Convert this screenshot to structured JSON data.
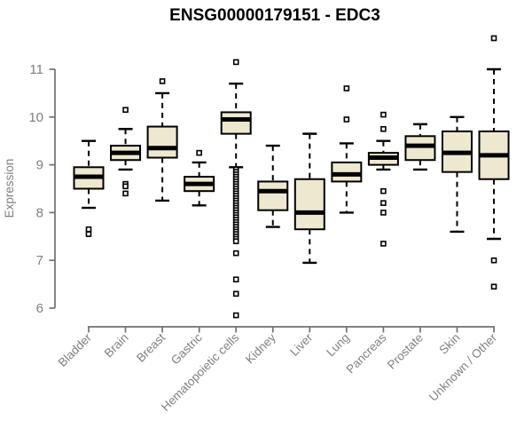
{
  "chart_data": {
    "type": "boxplot",
    "title": "ENSG00000179151 - EDC3",
    "xlabel": "",
    "ylabel": "Expression",
    "ylim": [
      6,
      11
    ],
    "yticks": [
      6,
      7,
      8,
      9,
      10,
      11
    ],
    "grid": false,
    "legend": "none",
    "categories": [
      "Bladder",
      "Brain",
      "Breast",
      "Gastric",
      "Hematopoietic cells",
      "Kidney",
      "Liver",
      "Lung",
      "Pancreas",
      "Prostate",
      "Skin",
      "Unknown / Other"
    ],
    "series": [
      {
        "name": "Bladder",
        "whisker_low": 8.1,
        "q1": 8.5,
        "median": 8.75,
        "q3": 8.95,
        "whisker_high": 9.5,
        "outliers": [
          7.65,
          7.55
        ]
      },
      {
        "name": "Brain",
        "whisker_low": 8.9,
        "q1": 9.1,
        "median": 9.25,
        "q3": 9.4,
        "whisker_high": 9.75,
        "outliers": [
          10.15,
          8.6,
          8.55,
          8.4
        ]
      },
      {
        "name": "Breast",
        "whisker_low": 8.25,
        "q1": 9.15,
        "median": 9.35,
        "q3": 9.8,
        "whisker_high": 10.5,
        "outliers": [
          10.75
        ]
      },
      {
        "name": "Gastric",
        "whisker_low": 8.15,
        "q1": 8.45,
        "median": 8.6,
        "q3": 8.75,
        "whisker_high": 9.05,
        "outliers": [
          9.25
        ]
      },
      {
        "name": "Hematopoietic cells",
        "whisker_low": 8.95,
        "q1": 9.65,
        "median": 9.95,
        "q3": 10.1,
        "whisker_high": 10.7,
        "outliers": [
          11.15,
          8.9,
          8.85,
          8.8,
          8.75,
          8.7,
          8.65,
          8.6,
          8.55,
          8.5,
          8.45,
          8.4,
          8.35,
          8.3,
          8.25,
          8.2,
          8.15,
          8.1,
          8.05,
          8.0,
          7.95,
          7.9,
          7.85,
          7.8,
          7.75,
          7.7,
          7.65,
          7.6,
          7.55,
          7.5,
          7.45,
          7.4,
          7.15,
          6.6,
          6.3,
          5.85
        ]
      },
      {
        "name": "Kidney",
        "whisker_low": 7.7,
        "q1": 8.05,
        "median": 8.45,
        "q3": 8.65,
        "whisker_high": 9.4,
        "outliers": []
      },
      {
        "name": "Liver",
        "whisker_low": 6.95,
        "q1": 7.65,
        "median": 8.0,
        "q3": 8.7,
        "whisker_high": 9.65,
        "outliers": []
      },
      {
        "name": "Lung",
        "whisker_low": 8.0,
        "q1": 8.65,
        "median": 8.8,
        "q3": 9.05,
        "whisker_high": 9.45,
        "outliers": [
          10.6,
          9.95
        ]
      },
      {
        "name": "Pancreas",
        "whisker_low": 8.9,
        "q1": 9.0,
        "median": 9.15,
        "q3": 9.25,
        "whisker_high": 9.5,
        "outliers": [
          10.05,
          9.75,
          8.45,
          8.2,
          8.0,
          7.35
        ]
      },
      {
        "name": "Prostate",
        "whisker_low": 8.9,
        "q1": 9.1,
        "median": 9.4,
        "q3": 9.6,
        "whisker_high": 9.85,
        "outliers": []
      },
      {
        "name": "Skin",
        "whisker_low": 7.6,
        "q1": 8.85,
        "median": 9.25,
        "q3": 9.7,
        "whisker_high": 10.0,
        "outliers": []
      },
      {
        "name": "Unknown / Other",
        "whisker_low": 7.45,
        "q1": 8.7,
        "median": 9.2,
        "q3": 9.7,
        "whisker_high": 11.0,
        "outliers": [
          11.65,
          7.0,
          6.45
        ]
      }
    ],
    "colors": {
      "box_fill": "#ede8cf",
      "box_border": "#000000",
      "median_line": "#000000",
      "whisker": "#000000",
      "outlier_stroke": "#000000",
      "outlier_fill": "#ffffff",
      "axis_line": "#707070",
      "tick_text": "#7f7f7f",
      "title_text": "#000000"
    }
  }
}
